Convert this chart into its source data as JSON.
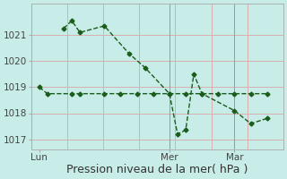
{
  "background_color": "#c8ece8",
  "grid_color": "#d8b0b0",
  "line_color": "#1a5c1a",
  "line1_x": [
    0,
    0.5,
    2,
    2.5,
    4,
    5,
    6,
    7,
    8,
    9,
    10,
    11,
    12,
    13,
    14
  ],
  "line1_y": [
    1019.0,
    1018.75,
    1018.75,
    1018.75,
    1018.75,
    1018.75,
    1018.75,
    1018.75,
    1018.75,
    1018.75,
    1018.75,
    1018.75,
    1018.75,
    1018.75,
    1018.75
  ],
  "line2_x": [
    1.5,
    2,
    2.5,
    4,
    5.5,
    6.5,
    8,
    8.5,
    9,
    9.5,
    10,
    12,
    13,
    14
  ],
  "line2_y": [
    1021.25,
    1021.55,
    1021.1,
    1021.35,
    1020.3,
    1019.75,
    1018.75,
    1017.2,
    1017.35,
    1019.5,
    1018.75,
    1018.1,
    1017.6,
    1017.8
  ],
  "xlim": [
    -0.5,
    15
  ],
  "ylim": [
    1016.6,
    1022.2
  ],
  "yticks": [
    1017,
    1018,
    1019,
    1020,
    1021
  ],
  "xtick_positions": [
    0,
    8,
    12
  ],
  "xtick_labels": [
    "Lun",
    "Mer",
    "Mar"
  ],
  "xlabel": "Pression niveau de la mer( hPa )",
  "xlabel_fontsize": 9,
  "tick_fontsize": 7.5,
  "vline_positions": [
    8,
    12
  ],
  "marker": "D",
  "marker_size": 2.5,
  "linewidth": 1.0,
  "linestyle": "--"
}
